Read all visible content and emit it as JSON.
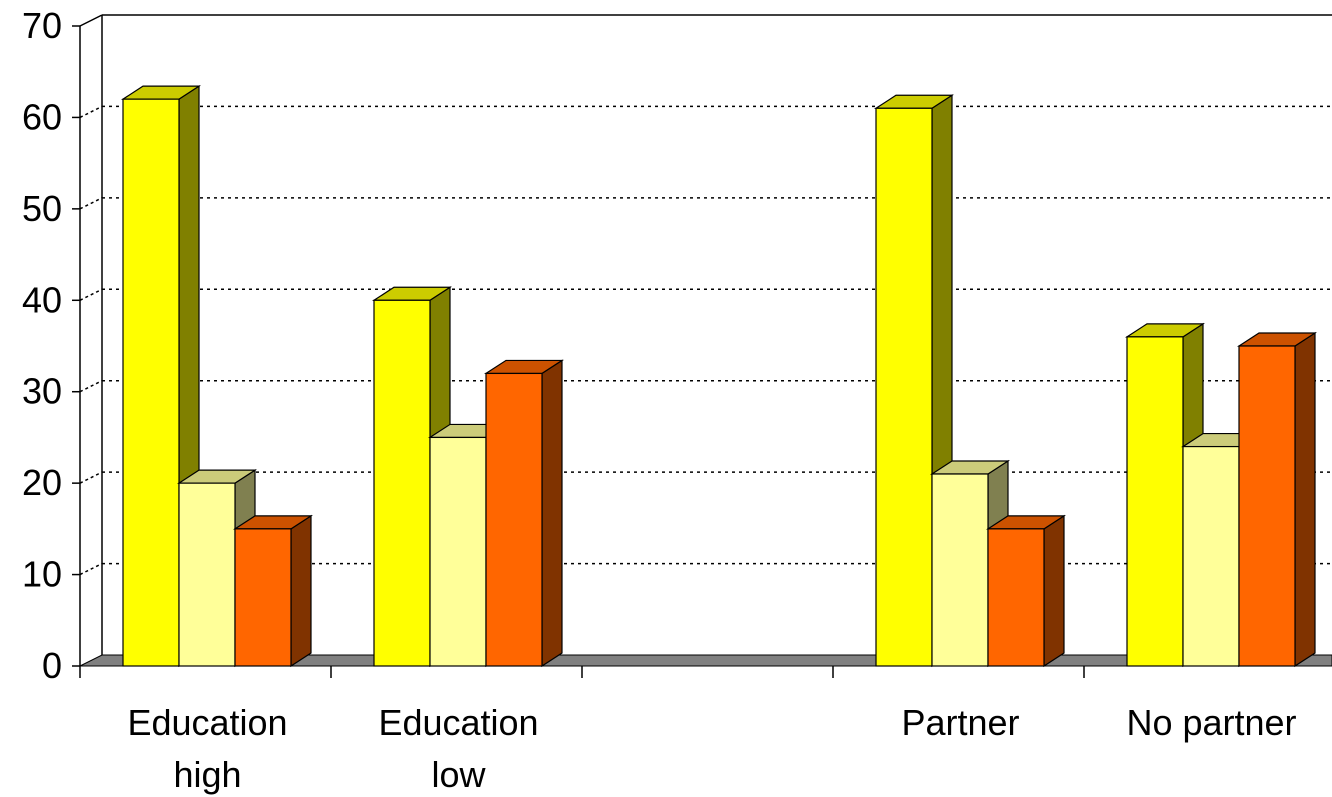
{
  "chart_data": {
    "type": "bar",
    "categories": [
      [
        "Education",
        "high"
      ],
      [
        "Education",
        "low"
      ],
      [
        "",
        ""
      ],
      [
        "Partner",
        ""
      ],
      [
        "No partner",
        ""
      ]
    ],
    "series": [
      {
        "color": "#ffff00",
        "side_color": "#808000",
        "top_color": "#cccc00",
        "values": [
          62,
          40,
          null,
          61,
          36
        ]
      },
      {
        "color": "#ffff99",
        "side_color": "#808050",
        "top_color": "#cccc7a",
        "values": [
          20,
          25,
          null,
          21,
          24
        ]
      },
      {
        "color": "#ff6600",
        "side_color": "#803300",
        "top_color": "#cc5200",
        "values": [
          15,
          32,
          null,
          15,
          35
        ]
      }
    ],
    "y_ticks": [
      "0",
      "10",
      "20",
      "30",
      "40",
      "50",
      "60",
      "70"
    ],
    "ylim": [
      0,
      70
    ],
    "grid": "dotted horizontal",
    "legend": "none",
    "title": "",
    "xlabel": "",
    "ylabel": ""
  }
}
